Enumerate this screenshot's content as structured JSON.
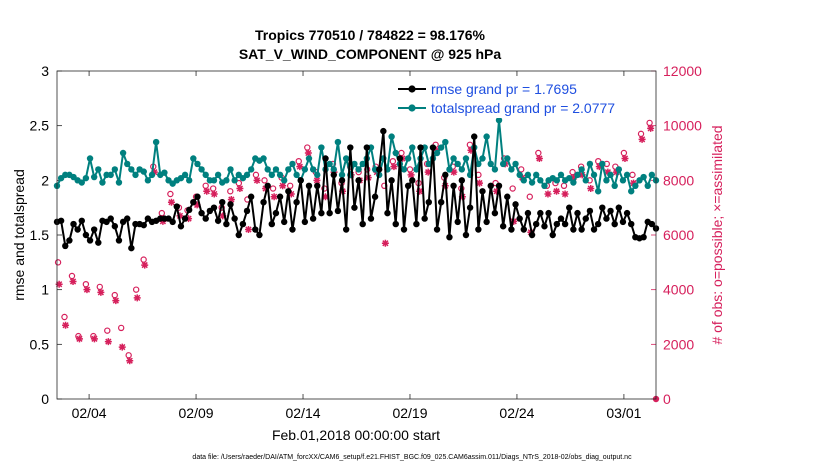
{
  "chart_data": {
    "type": "line",
    "title": "Tropics 770510 / 784822 = 98.176%",
    "subtitle": "SAT_V_WIND_COMPONENT @ 925 hPa",
    "xlabel": "Feb.01,2018 00:00:00 start",
    "ylabel": "rmse and totalspread",
    "y2label": "# of obs: o=possible; ×=assimilated",
    "footnote": "data file: /Users/raeder/DAI/ATM_forcXX/CAM6_setup/f.e21.FHIST_BGC.f09_025.CAM6assim.011/Diags_NTrS_2018-02/obs_diag_output.nc",
    "xlim": [
      1,
      29
    ],
    "ylim": [
      0,
      3
    ],
    "y2lim": [
      0,
      12000
    ],
    "x_ticks": [
      2.5,
      7.5,
      12.5,
      17.5,
      22.5,
      27.5
    ],
    "x_tick_labels": [
      "02/04",
      "02/09",
      "02/14",
      "02/19",
      "02/24",
      "03/01"
    ],
    "y_ticks": [
      0,
      0.5,
      1,
      1.5,
      2,
      2.5,
      3
    ],
    "y_tick_labels": [
      "0",
      "0.5",
      "1",
      "1.5",
      "2",
      "2.5",
      "3"
    ],
    "y2_ticks": [
      0,
      2000,
      4000,
      6000,
      8000,
      10000,
      12000
    ],
    "y2_tick_labels": [
      "0",
      "2000",
      "4000",
      "6000",
      "8000",
      "10000",
      "12000"
    ],
    "colors": {
      "rmse": "#000000",
      "spread": "#00807f",
      "obs": "#d6205c",
      "legend_text": "#1f4fe0"
    },
    "legend": [
      "rmse grand pr = 1.7695",
      "totalspread grand pr = 2.0777"
    ],
    "series": [
      {
        "name": "rmse",
        "values": [
          1.62,
          1.63,
          1.4,
          1.45,
          1.6,
          1.55,
          1.63,
          1.5,
          1.45,
          1.55,
          1.43,
          1.63,
          1.62,
          1.65,
          1.58,
          1.45,
          1.62,
          1.65,
          1.38,
          1.6,
          1.6,
          1.59,
          1.65,
          1.62,
          1.63,
          1.65,
          1.65,
          1.65,
          1.62,
          1.76,
          1.58,
          1.65,
          1.73,
          1.8,
          1.85,
          1.7,
          1.65,
          1.72,
          1.75,
          1.63,
          1.8,
          1.6,
          1.78,
          1.65,
          1.5,
          1.6,
          1.72,
          1.85,
          1.55,
          1.5,
          1.8,
          1.95,
          1.6,
          1.7,
          1.85,
          1.62,
          1.9,
          1.55,
          1.8,
          2.0,
          1.62,
          1.95,
          1.65,
          1.95,
          1.7,
          2.2,
          1.7,
          2.05,
          1.72,
          2.0,
          1.55,
          2.3,
          1.75,
          2.0,
          1.6,
          2.3,
          1.65,
          1.85,
          2.1,
          2.45,
          1.7,
          2.0,
          1.6,
          2.2,
          1.55,
          1.95,
          2.0,
          1.6,
          2.3,
          1.65,
          1.8,
          2.3,
          1.55,
          1.8,
          2.05,
          1.48,
          1.95,
          1.62,
          2.0,
          1.5,
          1.75,
          2.4,
          1.55,
          1.9,
          1.62,
          1.95,
          1.7,
          1.95,
          1.58,
          1.85,
          1.55,
          1.78,
          1.65,
          1.55,
          1.7,
          1.5,
          1.6,
          1.7,
          1.58,
          1.7,
          1.5,
          1.6,
          1.65,
          1.6,
          1.75,
          1.55,
          1.7,
          1.55,
          1.65,
          1.72,
          1.55,
          1.6,
          1.75,
          1.65,
          1.72,
          1.6,
          1.75,
          1.62,
          1.7,
          1.6,
          1.48,
          1.47,
          1.48,
          1.62,
          1.6,
          1.56
        ]
      },
      {
        "name": "totalspread",
        "values": [
          1.95,
          2.02,
          2.05,
          2.05,
          2.03,
          2.0,
          1.98,
          2.02,
          2.2,
          2.03,
          2.1,
          1.98,
          2.05,
          2.05,
          2.1,
          1.98,
          2.25,
          2.15,
          2.1,
          2.05,
          2.1,
          2.08,
          2.0,
          2.05,
          2.35,
          2.05,
          2.07,
          2.0,
          1.97,
          2.0,
          2.02,
          2.05,
          2.0,
          2.2,
          2.15,
          2.1,
          2.05,
          2.0,
          2.0,
          2.05,
          1.98,
          2.0,
          2.1,
          2.0,
          2.05,
          2.02,
          2.05,
          2.1,
          2.2,
          2.18,
          2.2,
          2.1,
          2.05,
          2.1,
          2.05,
          2.0,
          2.1,
          2.15,
          2.05,
          2.0,
          2.1,
          2.2,
          2.1,
          2.05,
          2.3,
          2.1,
          2.15,
          2.1,
          2.35,
          2.05,
          2.2,
          2.05,
          2.15,
          2.1,
          2.15,
          2.2,
          2.3,
          2.1,
          2.05,
          2.2,
          2.1,
          2.4,
          2.25,
          2.15,
          2.1,
          2.2,
          2.3,
          2.1,
          2.2,
          2.3,
          2.15,
          2.2,
          2.25,
          2.3,
          2.35,
          2.1,
          2.2,
          2.15,
          2.1,
          2.2,
          2.05,
          2.3,
          2.15,
          2.2,
          2.4,
          2.15,
          2.1,
          2.55,
          2.15,
          2.2,
          2.1,
          2.15,
          2.05,
          2.0,
          2.05,
          1.98,
          2.05,
          2.0,
          1.95,
          2.0,
          2.02,
          2.0,
          2.05,
          2.0,
          2.02,
          1.98,
          2.05,
          2.1,
          2.0,
          2.15,
          2.05,
          1.9,
          2.15,
          2.0,
          2.05,
          1.95,
          2.1,
          2.0,
          2.05,
          1.9,
          1.95,
          2.0,
          2.03,
          1.95,
          2.05,
          2.0
        ]
      },
      {
        "name": "obs_possible",
        "x": [
          1.05,
          1.35,
          1.7,
          2.0,
          2.35,
          2.7,
          3.0,
          3.35,
          3.7,
          4.0,
          4.35,
          4.7,
          5.05,
          5.5,
          5.9,
          6.3,
          6.7,
          7.1,
          7.5,
          7.95,
          8.3,
          8.7,
          9.1,
          9.5,
          9.9,
          10.3,
          10.7,
          11.1,
          11.5,
          11.9,
          12.3,
          12.7,
          13.1,
          13.5,
          13.9,
          14.3,
          14.7,
          15.1,
          15.5,
          15.9,
          16.3,
          16.7,
          17.1,
          17.5,
          17.9,
          18.3,
          18.7,
          19.1,
          19.5,
          19.9,
          20.3,
          20.7,
          21.1,
          21.5,
          21.9,
          22.3,
          22.7,
          23.1,
          23.5,
          23.9,
          24.3,
          24.7,
          25.1,
          25.5,
          25.9,
          26.3,
          26.7,
          27.1,
          27.5,
          27.9,
          28.3,
          28.7
        ],
        "values": [
          5000,
          3000,
          4500,
          2300,
          4200,
          2300,
          4100,
          2500,
          3800,
          2600,
          1600,
          4000,
          5100,
          8500,
          6800,
          7500,
          7000,
          6900,
          7400,
          7800,
          7700,
          7000,
          7600,
          7900,
          7300,
          8200,
          8000,
          7700,
          8100,
          7800,
          8700,
          9200,
          8300,
          7700,
          8600,
          7900,
          8500,
          8300,
          8400,
          8500,
          7800,
          8700,
          9000,
          8400,
          7900,
          8600,
          9300,
          8100,
          8500,
          7700,
          9300,
          8200,
          11000,
          7900,
          8800,
          7700,
          8400,
          7400,
          9000,
          7800,
          7900,
          7800,
          8300,
          8500,
          8000,
          8700,
          8600,
          8500,
          9000,
          8200,
          9700,
          10100
        ]
      },
      {
        "name": "obs_assimilated",
        "x": [
          1.1,
          1.4,
          1.75,
          2.05,
          2.4,
          2.75,
          3.05,
          3.4,
          3.75,
          4.05,
          4.4,
          4.75,
          5.1,
          5.55,
          5.95,
          6.35,
          6.75,
          7.15,
          7.55,
          8.0,
          8.35,
          8.75,
          9.15,
          9.55,
          9.95,
          10.35,
          10.75,
          11.15,
          11.55,
          11.95,
          12.35,
          12.75,
          13.15,
          13.55,
          13.95,
          14.35,
          14.75,
          15.15,
          15.55,
          15.95,
          16.35,
          16.75,
          17.15,
          17.55,
          17.95,
          18.35,
          18.75,
          19.15,
          19.55,
          19.95,
          20.35,
          20.75,
          21.15,
          21.55,
          21.95,
          22.35,
          22.75,
          23.15,
          23.55,
          23.95,
          24.35,
          24.75,
          25.15,
          25.55,
          25.95,
          26.35,
          26.75,
          27.15,
          27.55,
          27.95,
          28.35,
          28.75
        ],
        "values": [
          4200,
          2700,
          4300,
          2200,
          4000,
          2200,
          3900,
          2100,
          3600,
          1900,
          1400,
          3700,
          4900,
          8300,
          6500,
          7200,
          6700,
          6600,
          7100,
          7600,
          7500,
          6700,
          7300,
          7700,
          6200,
          8000,
          7700,
          7400,
          7800,
          7500,
          8500,
          9000,
          8000,
          7400,
          8300,
          7600,
          8200,
          8000,
          8100,
          8300,
          5700,
          8500,
          8800,
          8200,
          7600,
          8300,
          9100,
          7800,
          8300,
          7400,
          9100,
          7900,
          10800,
          7600,
          8600,
          6500,
          8100,
          6100,
          8800,
          7500,
          7600,
          7500,
          8100,
          8200,
          7700,
          8500,
          8300,
          8300,
          8800,
          7900,
          9500,
          9900
        ]
      }
    ]
  }
}
